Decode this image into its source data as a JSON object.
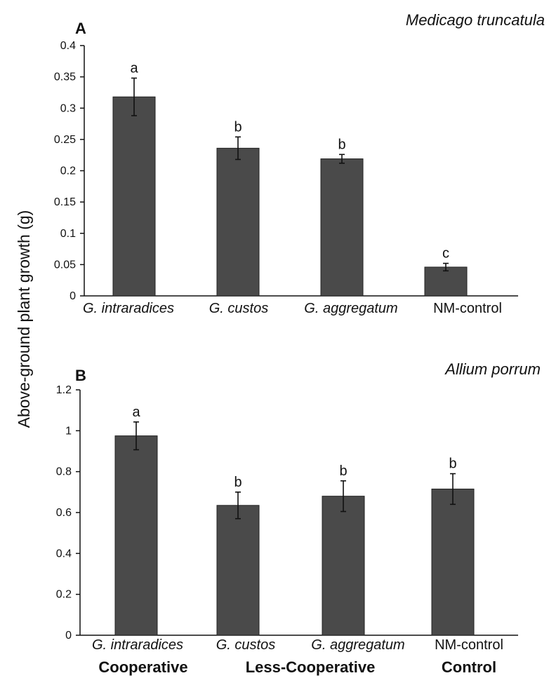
{
  "figure": {
    "ylabel": "Above-ground plant growth (g)",
    "group_labels": [
      "Cooperative",
      "Less-Cooperative",
      "Control"
    ]
  },
  "chart_data": [
    {
      "type": "bar",
      "panel_label": "A",
      "species": "Medicago truncatula",
      "categories": [
        "G. intraradices",
        "G. custos",
        "G. aggregatum",
        "NM-control"
      ],
      "category_italic": [
        true,
        true,
        true,
        false
      ],
      "values": [
        0.318,
        0.236,
        0.219,
        0.046
      ],
      "errors": [
        0.03,
        0.018,
        0.007,
        0.006
      ],
      "letters": [
        "a",
        "b",
        "b",
        "c"
      ],
      "yticks": [
        "0",
        "0.05",
        "0.1",
        "0.15",
        "0.2",
        "0.25",
        "0.3",
        "0.35",
        "0.4"
      ],
      "ylim": [
        0,
        0.4
      ],
      "grid": false,
      "bar_color": "#4a4a4a"
    },
    {
      "type": "bar",
      "panel_label": "B",
      "species": "Allium porrum",
      "categories": [
        "G. intraradices",
        "G. custos",
        "G. aggregatum",
        "NM-control"
      ],
      "category_italic": [
        true,
        true,
        true,
        false
      ],
      "values": [
        0.975,
        0.635,
        0.68,
        0.715
      ],
      "errors": [
        0.068,
        0.065,
        0.075,
        0.075
      ],
      "letters": [
        "a",
        "b",
        "b",
        "b"
      ],
      "yticks": [
        "0",
        "0.2",
        "0.4",
        "0.6",
        "0.8",
        "1",
        "1.2"
      ],
      "ylim": [
        0,
        1.2
      ],
      "grid": false,
      "bar_color": "#4a4a4a"
    }
  ]
}
